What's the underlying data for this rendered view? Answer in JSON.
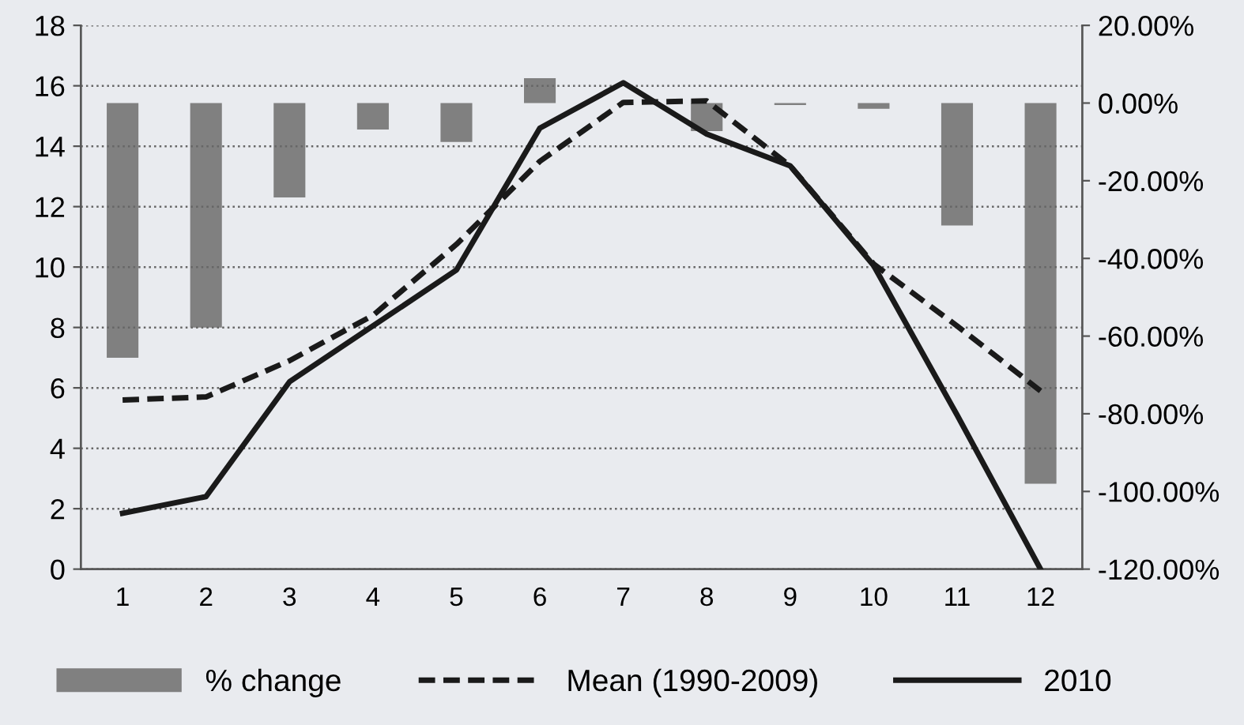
{
  "chart_data": {
    "type": "line",
    "categories": [
      "1",
      "2",
      "3",
      "4",
      "5",
      "6",
      "7",
      "8",
      "9",
      "10",
      "11",
      "12"
    ],
    "series": [
      {
        "name": "% change",
        "type": "bar",
        "axis": "y2",
        "color": "#808080",
        "values": [
          -65.6,
          -57.8,
          -24.3,
          -6.8,
          -10,
          6.4,
          0,
          -7.2,
          -0.5,
          -1.5,
          -31.5,
          -98
        ]
      },
      {
        "name": "Mean (1990-2009)",
        "color": "#1a1a1a",
        "line_style": "dashed",
        "values": [
          5.6,
          5.7,
          6.9,
          8.4,
          10.75,
          13.5,
          15.45,
          15.5,
          13.35,
          10.1,
          8.05,
          5.9
        ]
      },
      {
        "name": "2010",
        "color": "#1a1a1a",
        "line_style": "solid",
        "values": [
          1.85,
          2.4,
          6.2,
          8.05,
          9.9,
          14.6,
          16.1,
          14.4,
          13.35,
          10.05,
          5.1,
          0
        ]
      }
    ],
    "ylim": [
      0,
      18
    ],
    "yticks": [
      0,
      2,
      4,
      6,
      8,
      10,
      12,
      14,
      16,
      18
    ],
    "y2lim": [
      -120,
      20
    ],
    "y2ticks": [
      {
        "value": -120,
        "label": "-120.00%"
      },
      {
        "value": -100,
        "label": "-100.00%"
      },
      {
        "value": -80,
        "label": "-80.00%"
      },
      {
        "value": -60,
        "label": "-60.00%"
      },
      {
        "value": -40,
        "label": "-40.00%"
      },
      {
        "value": -20,
        "label": "-20.00%"
      },
      {
        "value": 0,
        "label": "0.00%"
      },
      {
        "value": 20,
        "label": "20.00%"
      }
    ],
    "grid": "y",
    "legend": "bottom"
  }
}
